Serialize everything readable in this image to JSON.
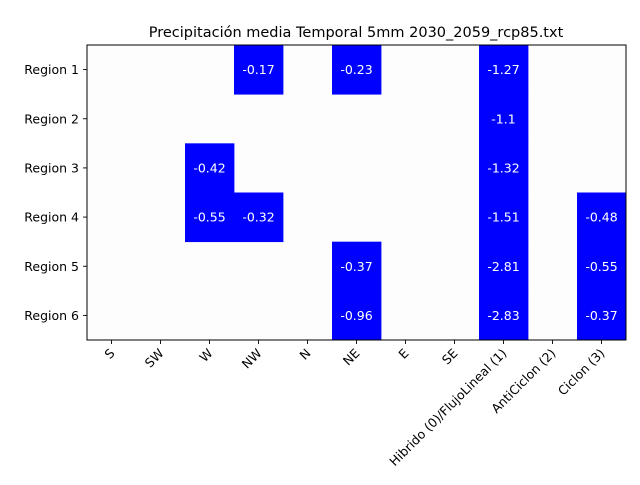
{
  "chart_data": {
    "type": "heatmap",
    "title": "Precipitación media Temporal 5mm 2030_2059_rcp85.txt",
    "xlabel": "",
    "ylabel": "",
    "columns": [
      "S",
      "SW",
      "W",
      "NW",
      "N",
      "NE",
      "E",
      "SE",
      "Hibrido (0)/FlujoLineal (1)",
      "AntiCiclon (2)",
      "Ciclon (3)"
    ],
    "rows": [
      "Region 1",
      "Region 2",
      "Region 3",
      "Region 4",
      "Region 5",
      "Region 6"
    ],
    "values": [
      [
        null,
        null,
        null,
        -0.17,
        null,
        -0.23,
        null,
        null,
        -1.27,
        null,
        null
      ],
      [
        null,
        null,
        null,
        null,
        null,
        null,
        null,
        null,
        -1.1,
        null,
        null
      ],
      [
        null,
        null,
        -0.42,
        null,
        null,
        null,
        null,
        null,
        -1.32,
        null,
        null
      ],
      [
        null,
        null,
        -0.55,
        -0.32,
        null,
        null,
        null,
        null,
        -1.51,
        null,
        -0.48
      ],
      [
        null,
        null,
        null,
        null,
        null,
        -0.37,
        null,
        null,
        -2.81,
        null,
        -0.55
      ],
      [
        null,
        null,
        null,
        null,
        null,
        -0.96,
        null,
        null,
        -2.83,
        null,
        -0.37
      ]
    ],
    "cell_color": "#0000ff",
    "empty_color": "#fdfdfd",
    "label_color": "#ffffff",
    "grid": false,
    "legend": false
  }
}
